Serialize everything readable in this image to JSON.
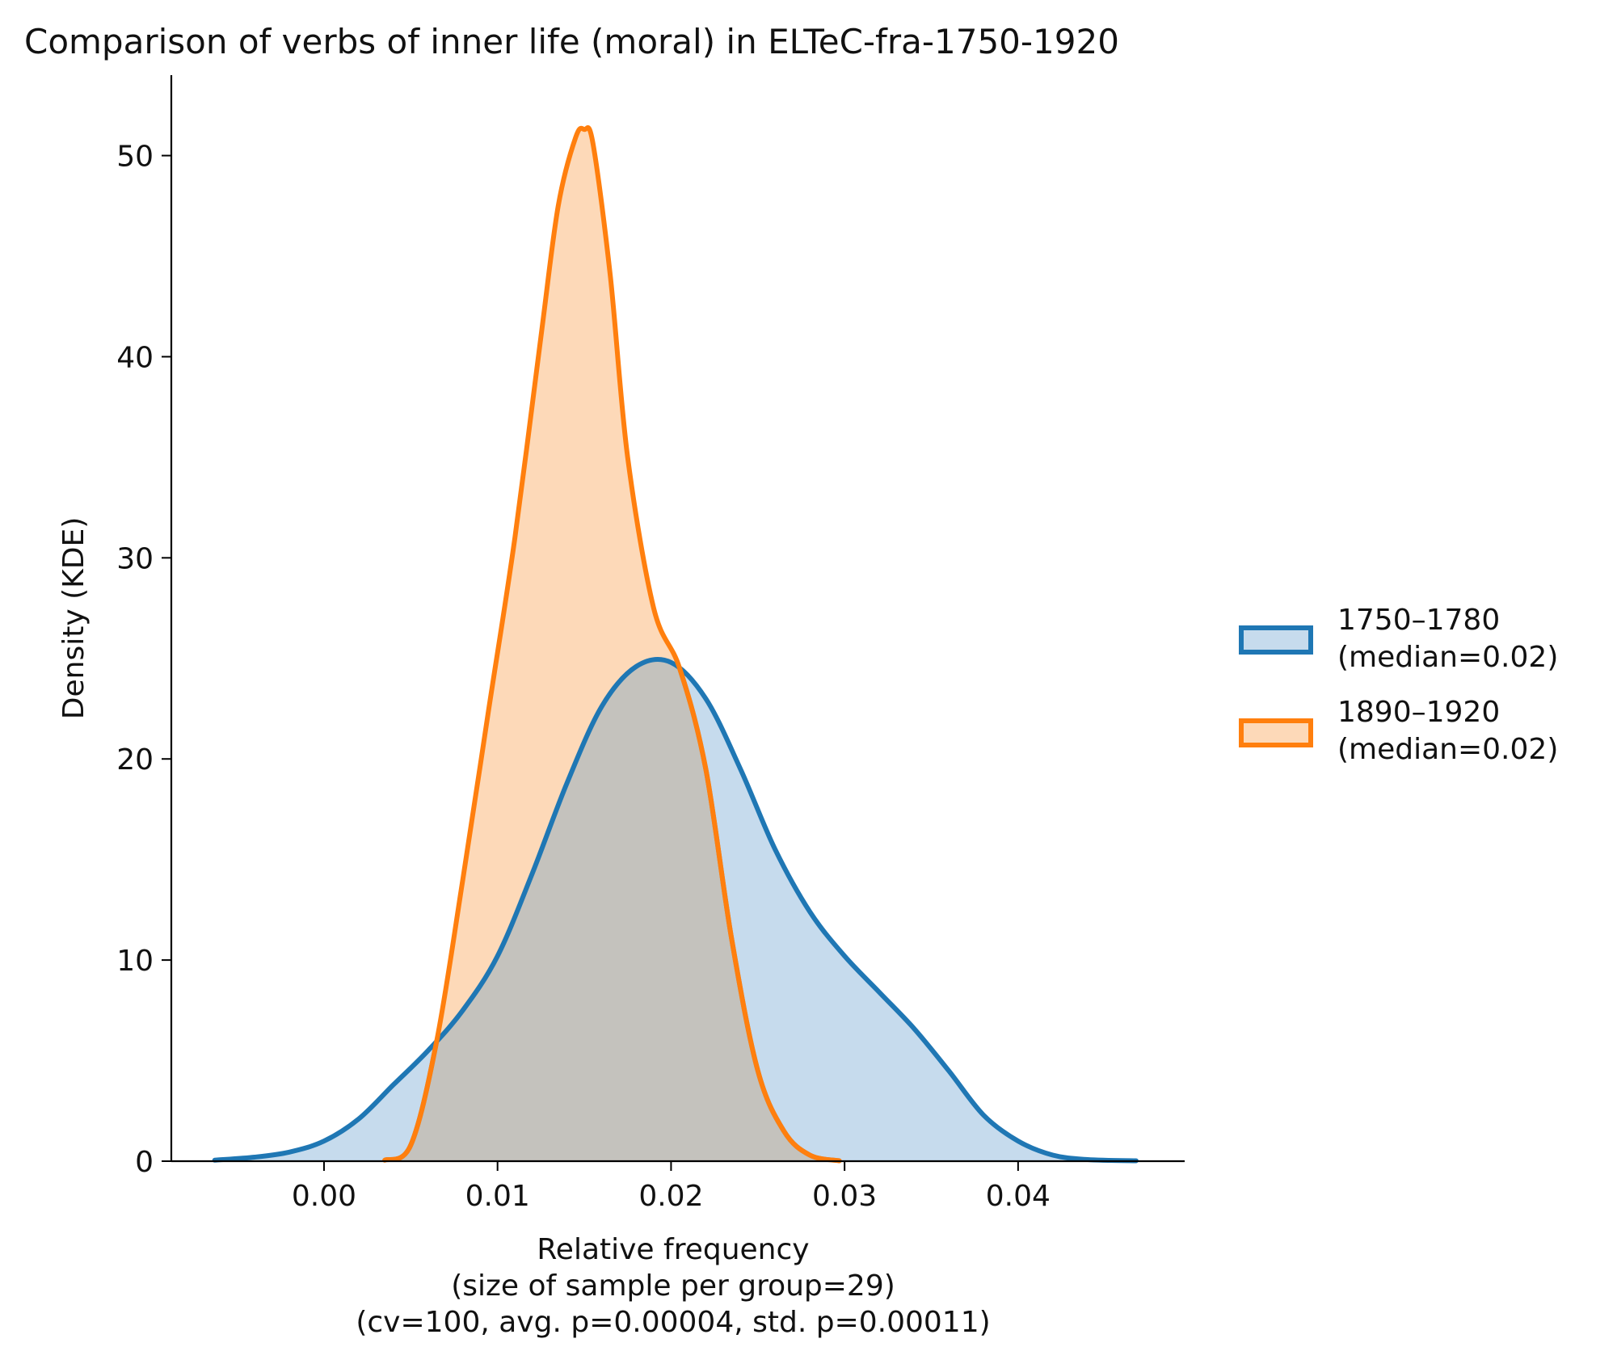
{
  "chart_data": {
    "type": "area",
    "title": "Comparison of verbs of inner life (moral) in ELTeC-fra-1750-1920",
    "xlabel": [
      "Relative frequency",
      "(size of sample per group=29)",
      "(cv=100, avg. p=0.00004, std. p=0.00011)"
    ],
    "ylabel": "Density (KDE)",
    "xlim": [
      -0.0088,
      0.0496
    ],
    "ylim": [
      0,
      54
    ],
    "xticks": [
      "0.00",
      "0.01",
      "0.02",
      "0.03",
      "0.04"
    ],
    "xtick_values": [
      0.0,
      0.01,
      0.02,
      0.03,
      0.04
    ],
    "yticks": [
      "0",
      "10",
      "20",
      "30",
      "40",
      "50"
    ],
    "ytick_values": [
      0,
      10,
      20,
      30,
      40,
      50
    ],
    "grid": false,
    "legend_position": "right",
    "series": [
      {
        "name": "1750–1780",
        "legend_lines": [
          "1750–1780",
          "(median=0.02)"
        ],
        "color": "#1f77b4",
        "fill": "#c6dbed",
        "x": [
          -0.0063,
          -0.004,
          -0.002,
          0.0,
          0.002,
          0.004,
          0.006,
          0.008,
          0.01,
          0.012,
          0.014,
          0.016,
          0.018,
          0.02,
          0.022,
          0.024,
          0.026,
          0.028,
          0.03,
          0.032,
          0.034,
          0.036,
          0.038,
          0.04,
          0.042,
          0.044,
          0.0468
        ],
        "y": [
          0.05,
          0.2,
          0.45,
          1.0,
          2.1,
          3.8,
          5.5,
          7.5,
          10.2,
          14.3,
          18.8,
          22.6,
          24.6,
          24.8,
          23.0,
          19.5,
          15.5,
          12.4,
          10.2,
          8.4,
          6.6,
          4.5,
          2.3,
          1.0,
          0.3,
          0.08,
          0.02
        ]
      },
      {
        "name": "1890–1920",
        "legend_lines": [
          "1890–1920",
          "(median=0.02)"
        ],
        "color": "#ff7f0e",
        "fill": "#fdd9b8",
        "x": [
          0.0035,
          0.005,
          0.0065,
          0.008,
          0.0095,
          0.011,
          0.0125,
          0.0135,
          0.0145,
          0.015,
          0.0155,
          0.0165,
          0.0175,
          0.019,
          0.0205,
          0.022,
          0.0235,
          0.025,
          0.0265,
          0.028,
          0.0297
        ],
        "y": [
          0.05,
          0.8,
          6.0,
          14.0,
          22.5,
          31.0,
          41.0,
          47.5,
          50.9,
          51.3,
          50.6,
          44.0,
          35.0,
          27.5,
          24.5,
          19.5,
          11.0,
          4.5,
          1.5,
          0.3,
          0.02
        ]
      }
    ],
    "overlap_fill": "#c4c2bd"
  }
}
